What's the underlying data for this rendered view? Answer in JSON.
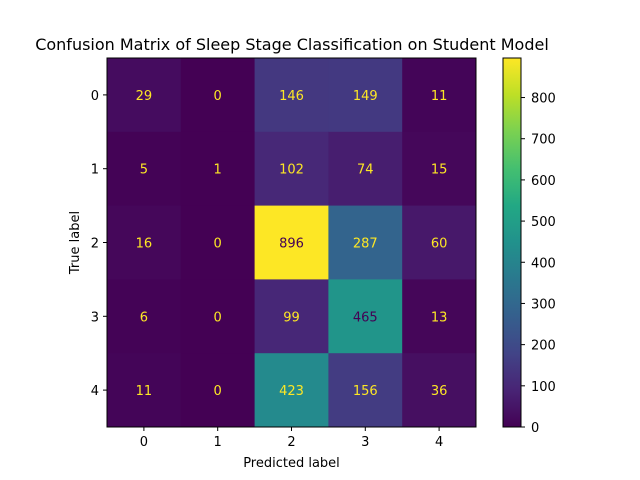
{
  "chart_data": {
    "type": "heatmap",
    "title": "Confusion Matrix of Sleep Stage Classification on Student Model",
    "xlabel": "Predicted label",
    "ylabel": "True label",
    "x_categories": [
      "0",
      "1",
      "2",
      "3",
      "4"
    ],
    "y_categories": [
      "0",
      "1",
      "2",
      "3",
      "4"
    ],
    "matrix": [
      [
        29,
        0,
        146,
        149,
        11
      ],
      [
        5,
        1,
        102,
        74,
        15
      ],
      [
        16,
        0,
        896,
        287,
        60
      ],
      [
        6,
        0,
        99,
        465,
        13
      ],
      [
        11,
        0,
        423,
        156,
        36
      ]
    ],
    "colormap": "viridis",
    "value_range": [
      0,
      896
    ],
    "colorbar_ticks": [
      0,
      100,
      200,
      300,
      400,
      500,
      600,
      700,
      800
    ],
    "grid": false,
    "colors": {
      "text_on_dark": "#fde725",
      "text_on_light": "#440154"
    }
  }
}
